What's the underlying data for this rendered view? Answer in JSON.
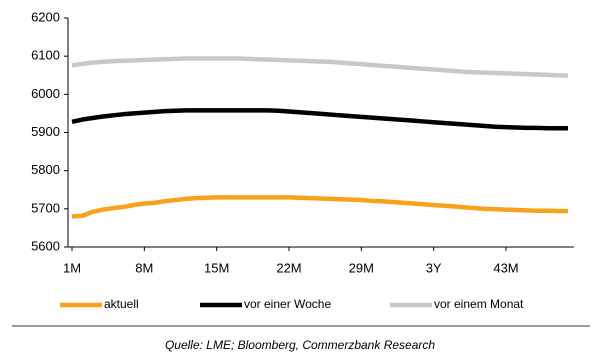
{
  "chart_data": {
    "type": "line",
    "categories": [
      "1M",
      null,
      null,
      null,
      null,
      null,
      null,
      "8M",
      null,
      null,
      null,
      null,
      null,
      null,
      "15M",
      null,
      null,
      null,
      null,
      null,
      null,
      "22M",
      null,
      null,
      null,
      null,
      null,
      null,
      "29M",
      null,
      null,
      null,
      null,
      null,
      null,
      "3Y",
      null,
      null,
      null,
      null,
      null,
      null,
      "43M",
      null,
      null,
      null,
      null,
      null,
      null
    ],
    "series": [
      {
        "name": "aktuell",
        "color": "#f7a21b",
        "values": [
          5680,
          5682,
          5692,
          5698,
          5702,
          5705,
          5710,
          5714,
          5716,
          5720,
          5723,
          5726,
          5728,
          5729,
          5730,
          5730,
          5730,
          5730,
          5730,
          5730,
          5730,
          5730,
          5729,
          5728,
          5727,
          5726,
          5725,
          5724,
          5723,
          5721,
          5720,
          5718,
          5716,
          5714,
          5712,
          5710,
          5708,
          5706,
          5704,
          5702,
          5700,
          5699,
          5698,
          5697,
          5696,
          5695,
          5695,
          5694,
          5694
        ]
      },
      {
        "name": "vor einer Woche",
        "color": "#000000",
        "values": [
          5928,
          5934,
          5938,
          5942,
          5945,
          5948,
          5950,
          5952,
          5954,
          5956,
          5957,
          5958,
          5958,
          5958,
          5958,
          5958,
          5958,
          5958,
          5958,
          5958,
          5957,
          5955,
          5953,
          5951,
          5949,
          5947,
          5945,
          5943,
          5941,
          5939,
          5937,
          5935,
          5933,
          5931,
          5929,
          5927,
          5925,
          5923,
          5921,
          5919,
          5917,
          5915,
          5914,
          5913,
          5912,
          5912,
          5911,
          5911,
          5911
        ]
      },
      {
        "name": "vor einem Monat",
        "color": "#c8c8c8",
        "values": [
          6076,
          6080,
          6083,
          6085,
          6087,
          6088,
          6089,
          6090,
          6091,
          6092,
          6093,
          6094,
          6094,
          6094,
          6094,
          6094,
          6094,
          6093,
          6092,
          6091,
          6090,
          6089,
          6088,
          6087,
          6086,
          6085,
          6083,
          6081,
          6079,
          6077,
          6075,
          6073,
          6071,
          6069,
          6067,
          6065,
          6063,
          6061,
          6059,
          6058,
          6057,
          6056,
          6055,
          6054,
          6053,
          6052,
          6051,
          6050,
          6049
        ]
      }
    ],
    "ylim": [
      5600,
      6200
    ],
    "yticks": [
      5600,
      5700,
      5800,
      5900,
      6000,
      6100,
      6200
    ],
    "grid": false,
    "legend": "bottom",
    "source": "Quelle: LME; Bloomberg, Commerzbank Research"
  }
}
